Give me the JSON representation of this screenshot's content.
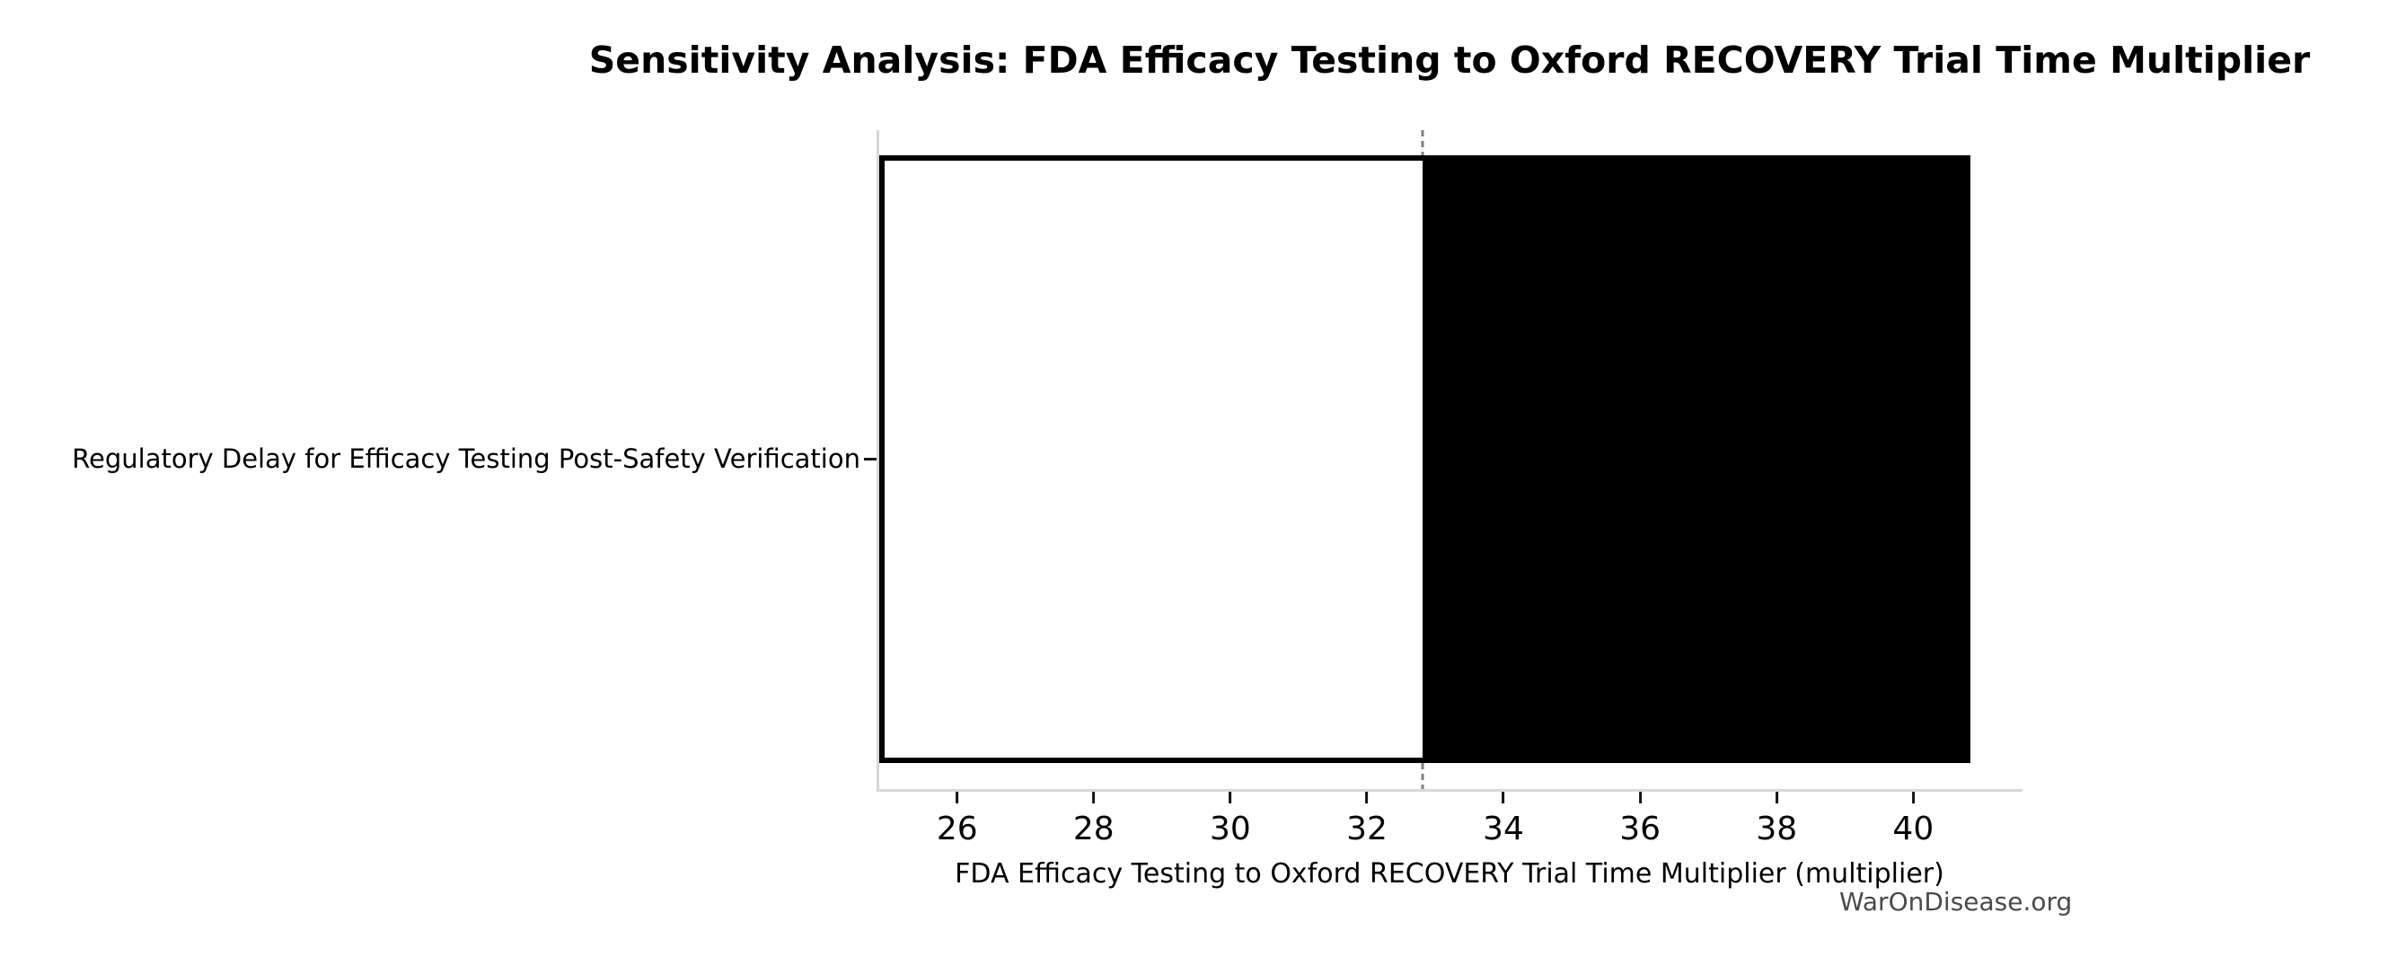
{
  "chart_data": {
    "type": "bar",
    "subtype": "tornado-sensitivity",
    "orientation": "horizontal",
    "title": "Sensitivity Analysis: FDA Efficacy Testing to Oxford RECOVERY Trial Time Multiplier",
    "xlabel": "FDA Efficacy Testing to Oxford RECOVERY Trial Time Multiplier (multiplier)",
    "ylabel": "",
    "categories": [
      "Regulatory Delay for Efficacy Testing Post-Safety Verification"
    ],
    "bars": [
      {
        "category": "Regulatory Delay for Efficacy Testing Post-Safety Verification",
        "low": 24.86,
        "base": 32.82,
        "high": 40.84
      }
    ],
    "baseline_value": 32.82,
    "x_ticks": [
      26,
      28,
      30,
      32,
      34,
      36,
      38,
      40
    ],
    "xlim": [
      24.82,
      41.6
    ],
    "grid": false,
    "legend": false,
    "watermark": "WarOnDisease.org",
    "colors": {
      "low_side_fill": "#ffffff",
      "high_side_fill": "#000000",
      "bar_edge": "#000000",
      "baseline_dashed_line": "#7f7f7f",
      "axis_spine": "#d8d8d8",
      "tick": "#141414",
      "text": "#000000",
      "watermark": "#4a4a4a",
      "background": "#ffffff"
    }
  }
}
